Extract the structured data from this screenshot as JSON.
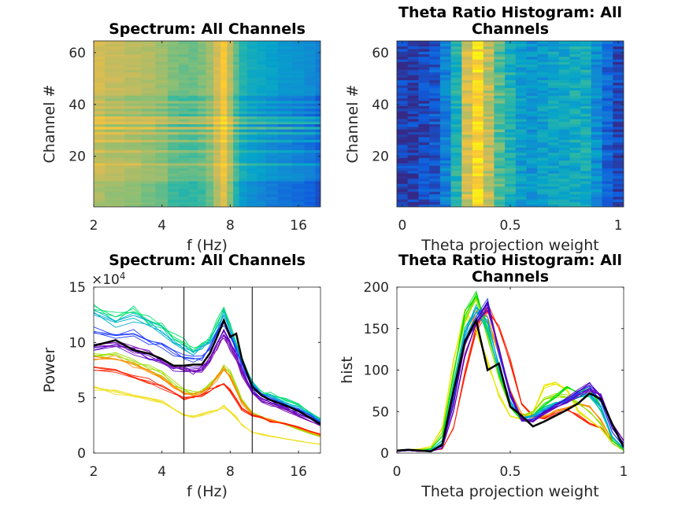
{
  "colormap": [
    "#352a87",
    "#0f5cdd",
    "#1481d6",
    "#06a4ca",
    "#2eb7a4",
    "#87bf77",
    "#d1bb59",
    "#fec832",
    "#f9fb0e"
  ],
  "chart_data": [
    {
      "type": "heatmap",
      "title": "Spectrum: All Channels",
      "xlabel": "f (Hz)",
      "ylabel": "Channel #",
      "xscale": "log2",
      "xlim": [
        2,
        20
      ],
      "ylim": [
        0.5,
        64.5
      ],
      "xticks": [
        "2",
        "4",
        "8",
        "16"
      ],
      "yticks": [
        "20",
        "40",
        "60"
      ],
      "freqs": [
        2,
        2.5,
        3,
        3.5,
        4,
        4.5,
        5,
        5.5,
        6,
        6.5,
        7,
        7.5,
        8,
        8.5,
        9,
        10,
        11,
        12,
        14,
        16,
        18,
        20
      ],
      "freq_profile": [
        0.75,
        0.72,
        0.7,
        0.68,
        0.65,
        0.6,
        0.58,
        0.58,
        0.6,
        0.65,
        0.75,
        0.85,
        0.7,
        0.55,
        0.45,
        0.4,
        0.38,
        0.35,
        0.32,
        0.3,
        0.27,
        0.22
      ],
      "channel_offsets": [
        -0.12,
        -0.12,
        -0.12,
        -0.12,
        -0.12,
        -0.12,
        -0.12,
        -0.12,
        -0.12,
        -0.12,
        -0.02,
        -0.02,
        -0.02,
        -0.02,
        -0.02,
        -0.02,
        0.1,
        -0.05,
        -0.05,
        -0.05,
        -0.05,
        0.05,
        -0.08,
        -0.08,
        -0.08,
        0.08,
        -0.05,
        -0.05,
        0.12,
        -0.08,
        0.2,
        -0.1,
        0.18,
        0.05,
        0.15,
        -0.1,
        0.02,
        -0.08,
        0.02,
        -0.05,
        0.03,
        -0.08,
        -0.08,
        0.02,
        0.02,
        0.02,
        0.02,
        0.02,
        0.02,
        0.02,
        0.02,
        0.02,
        0.02,
        0.02,
        0.02,
        0.02,
        0.02,
        0.02,
        0.02,
        0.02,
        0.02,
        0.02,
        0.02,
        0.02
      ]
    },
    {
      "type": "heatmap",
      "title": "Theta Ratio Histogram: All Channels",
      "xlabel": "Theta projection weight",
      "ylabel": "Channel #",
      "xlim": [
        -0.025,
        1.025
      ],
      "ylim": [
        0.5,
        64.5
      ],
      "xticks": [
        "0",
        "0.5",
        "1"
      ],
      "yticks": [
        "20",
        "40",
        "60"
      ],
      "bins": [
        0,
        0.05,
        0.1,
        0.15,
        0.2,
        0.25,
        0.3,
        0.35,
        0.4,
        0.45,
        0.5,
        0.55,
        0.6,
        0.65,
        0.7,
        0.75,
        0.8,
        0.85,
        0.9,
        0.95,
        1
      ],
      "bin_profile": [
        0.05,
        0.06,
        0.08,
        0.12,
        0.25,
        0.45,
        0.75,
        0.9,
        0.72,
        0.55,
        0.45,
        0.36,
        0.33,
        0.35,
        0.38,
        0.4,
        0.42,
        0.42,
        0.3,
        0.16,
        0.08
      ]
    },
    {
      "type": "line",
      "title": "Spectrum: All Channels",
      "xlabel": "f (Hz)",
      "ylabel": "Power",
      "y_exponent": "4",
      "xscale": "log2",
      "xlim": [
        2,
        20
      ],
      "ylim": [
        0,
        15
      ],
      "xticks": [
        "2",
        "4",
        "8",
        "16"
      ],
      "yticks": [
        "0",
        "5",
        "10",
        "15"
      ],
      "vlines": [
        5,
        10
      ],
      "x": [
        2,
        2.5,
        3,
        3.5,
        4,
        4.5,
        5,
        5.5,
        6,
        6.5,
        7,
        7.5,
        8,
        8.5,
        9,
        10,
        11,
        12,
        14,
        16,
        18,
        20
      ],
      "series": [
        {
          "color": "#00e070",
          "values": [
            13.3,
            12.3,
            12.8,
            12.0,
            11.5,
            10.5,
            10.0,
            9.5,
            9.7,
            10.5,
            11.8,
            13.0,
            11.5,
            10.0,
            8.5,
            6.5,
            5.5,
            5.3,
            4.8,
            4.3,
            3.7,
            3.0
          ]
        },
        {
          "color": "#00b0d0",
          "values": [
            12.5,
            11.8,
            12.2,
            11.5,
            11.0,
            10.0,
            9.5,
            9.2,
            9.4,
            10.2,
            11.4,
            12.5,
            11.0,
            9.6,
            8.2,
            6.3,
            5.3,
            5.1,
            4.6,
            4.1,
            3.6,
            2.9
          ]
        },
        {
          "color": "#1e3cff",
          "values": [
            11.0,
            10.7,
            10.8,
            10.2,
            9.8,
            9.0,
            8.6,
            8.5,
            8.6,
            9.5,
            10.8,
            11.8,
            10.6,
            9.4,
            8.0,
            6.0,
            5.2,
            4.9,
            4.4,
            3.9,
            3.4,
            2.8
          ]
        },
        {
          "color": "#5a00c8",
          "values": [
            9.5,
            9.8,
            9.2,
            8.8,
            8.2,
            7.7,
            7.6,
            7.6,
            7.7,
            8.6,
            10.0,
            11.0,
            10.0,
            8.8,
            7.5,
            5.6,
            4.9,
            4.6,
            4.1,
            3.6,
            3.1,
            2.6
          ]
        },
        {
          "color": "#7a10b0",
          "values": [
            9.8,
            10.0,
            9.4,
            9.0,
            8.4,
            7.8,
            7.5,
            7.4,
            7.6,
            8.4,
            9.7,
            10.6,
            9.6,
            8.5,
            7.2,
            5.4,
            4.7,
            4.4,
            3.9,
            3.4,
            2.9,
            2.5
          ]
        },
        {
          "color": "#9be000",
          "values": [
            9.0,
            8.8,
            8.3,
            7.8,
            7.2,
            6.3,
            5.6,
            5.4,
            5.6,
            6.2,
            7.0,
            7.8,
            7.2,
            6.0,
            4.8,
            3.6,
            3.2,
            3.0,
            2.6,
            2.2,
            1.8,
            1.5
          ]
        },
        {
          "color": "#ff8c00",
          "values": [
            8.5,
            8.5,
            8.0,
            7.5,
            6.8,
            6.0,
            5.4,
            5.2,
            5.4,
            6.0,
            6.8,
            7.6,
            7.0,
            5.8,
            4.6,
            3.5,
            3.2,
            3.0,
            2.7,
            2.3,
            1.9,
            1.6
          ]
        },
        {
          "color": "#ff2000",
          "values": [
            7.5,
            7.3,
            6.8,
            6.5,
            6.0,
            5.5,
            5.0,
            5.0,
            5.3,
            5.6,
            6.0,
            6.3,
            5.6,
            4.8,
            4.0,
            3.4,
            3.2,
            2.9,
            2.6,
            2.3,
            2.0,
            1.7
          ]
        },
        {
          "color": "#f0e020",
          "values": [
            5.9,
            5.5,
            5.2,
            4.9,
            4.6,
            4.0,
            3.5,
            3.3,
            3.5,
            3.7,
            3.9,
            4.2,
            3.8,
            3.2,
            2.5,
            1.9,
            1.7,
            1.5,
            1.3,
            1.1,
            0.9,
            0.8
          ]
        },
        {
          "color": "#000000",
          "bold": true,
          "values": [
            9.7,
            10.2,
            9.3,
            9.0,
            8.5,
            7.9,
            7.9,
            8.0,
            8.0,
            9.0,
            10.5,
            12.0,
            10.5,
            10.8,
            8.5,
            6.0,
            5.2,
            4.8,
            4.3,
            3.8,
            3.2,
            2.6
          ]
        }
      ]
    },
    {
      "type": "line",
      "title": "Theta Ratio Histogram: All Channels",
      "xlabel": "Theta projection weight",
      "ylabel": "hist",
      "xlim": [
        0,
        1
      ],
      "ylim": [
        0,
        200
      ],
      "xticks": [
        "0",
        "0.5",
        "1"
      ],
      "yticks": [
        "0",
        "50",
        "100",
        "150",
        "200"
      ],
      "x": [
        0,
        0.05,
        0.1,
        0.15,
        0.2,
        0.25,
        0.3,
        0.35,
        0.4,
        0.45,
        0.5,
        0.55,
        0.6,
        0.65,
        0.7,
        0.75,
        0.8,
        0.85,
        0.9,
        0.95,
        1
      ],
      "series": [
        {
          "color": "#ff2000",
          "values": [
            2,
            3,
            3,
            3,
            5,
            30,
            95,
            150,
            175,
            150,
            110,
            60,
            45,
            42,
            48,
            52,
            45,
            35,
            30,
            15,
            5
          ]
        },
        {
          "color": "#ff8c00",
          "values": [
            2,
            3,
            3,
            4,
            10,
            60,
            130,
            170,
            165,
            120,
            75,
            48,
            42,
            45,
            50,
            55,
            60,
            55,
            40,
            15,
            4
          ]
        },
        {
          "color": "#e8e800",
          "values": [
            3,
            4,
            5,
            8,
            30,
            110,
            170,
            150,
            110,
            70,
            45,
            40,
            50,
            80,
            85,
            75,
            50,
            40,
            30,
            12,
            3
          ]
        },
        {
          "color": "#9be000",
          "values": [
            3,
            4,
            4,
            6,
            25,
            100,
            160,
            185,
            140,
            90,
            55,
            45,
            50,
            65,
            70,
            68,
            60,
            50,
            35,
            12,
            3
          ]
        },
        {
          "color": "#00e000",
          "values": [
            3,
            3,
            3,
            5,
            20,
            95,
            165,
            192,
            150,
            95,
            55,
            40,
            45,
            58,
            68,
            80,
            72,
            78,
            55,
            15,
            4
          ]
        },
        {
          "color": "#00c896",
          "values": [
            2,
            3,
            3,
            4,
            15,
            85,
            150,
            175,
            150,
            100,
            60,
            42,
            45,
            55,
            60,
            62,
            68,
            70,
            50,
            18,
            5
          ]
        },
        {
          "color": "#00a0e0",
          "values": [
            2,
            3,
            3,
            3,
            12,
            75,
            145,
            170,
            160,
            105,
            62,
            42,
            44,
            52,
            58,
            64,
            70,
            72,
            55,
            20,
            6
          ]
        },
        {
          "color": "#1e3cff",
          "values": [
            2,
            3,
            3,
            3,
            10,
            65,
            135,
            165,
            180,
            120,
            68,
            40,
            40,
            50,
            55,
            62,
            72,
            78,
            62,
            25,
            8
          ]
        },
        {
          "color": "#4b00c8",
          "values": [
            2,
            3,
            2,
            3,
            8,
            60,
            130,
            160,
            183,
            125,
            70,
            40,
            38,
            50,
            58,
            65,
            75,
            82,
            68,
            30,
            12
          ]
        },
        {
          "color": "#6a00b4",
          "values": [
            2,
            3,
            2,
            2,
            6,
            50,
            120,
            155,
            175,
            125,
            72,
            42,
            38,
            48,
            55,
            62,
            70,
            76,
            70,
            35,
            15
          ]
        },
        {
          "color": "#000000",
          "bold": true,
          "values": [
            3,
            4,
            3,
            2,
            10,
            75,
            135,
            160,
            100,
            108,
            56,
            45,
            32,
            38,
            45,
            52,
            60,
            72,
            65,
            35,
            7
          ]
        }
      ]
    }
  ]
}
